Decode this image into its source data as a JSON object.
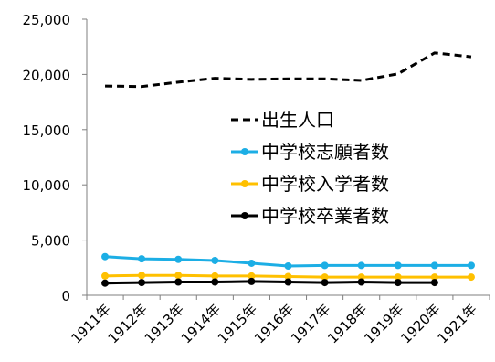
{
  "chart_data": {
    "type": "line",
    "title": "",
    "xlabel": "",
    "ylabel": "",
    "categories": [
      "1911年",
      "1912年",
      "1913年",
      "1914年",
      "1915年",
      "1916年",
      "1917年",
      "1918年",
      "1919年",
      "1920年",
      "1921年"
    ],
    "ylim": [
      0,
      25000
    ],
    "yticks": [
      0,
      5000,
      10000,
      15000,
      20000,
      25000
    ],
    "ytick_labels": [
      "0",
      "5,000",
      "10,000",
      "15,000",
      "20,000",
      "25,000"
    ],
    "grid": false,
    "legend_position": "center-right",
    "series": [
      {
        "name": "出生人口",
        "color": "#000000",
        "dashed": true,
        "markers": false,
        "values": [
          18950,
          18900,
          19300,
          19650,
          19550,
          19600,
          19600,
          19450,
          20050,
          21950,
          21600
        ]
      },
      {
        "name": "中学校志願者数",
        "color": "#1CAEE5",
        "dashed": false,
        "markers": true,
        "values": [
          3500,
          3300,
          3250,
          3150,
          2900,
          2650,
          2700,
          2700,
          2700,
          2700,
          2700
        ]
      },
      {
        "name": "中学校入学者数",
        "color": "#FFC000",
        "dashed": false,
        "markers": true,
        "values": [
          1750,
          1800,
          1800,
          1750,
          1750,
          1700,
          1650,
          1650,
          1650,
          1650,
          1650
        ]
      },
      {
        "name": "中学校卒業者数",
        "color": "#000000",
        "dashed": false,
        "markers": true,
        "values": [
          1100,
          1150,
          1200,
          1200,
          1250,
          1200,
          1150,
          1200,
          1150,
          1150,
          null
        ]
      }
    ]
  }
}
